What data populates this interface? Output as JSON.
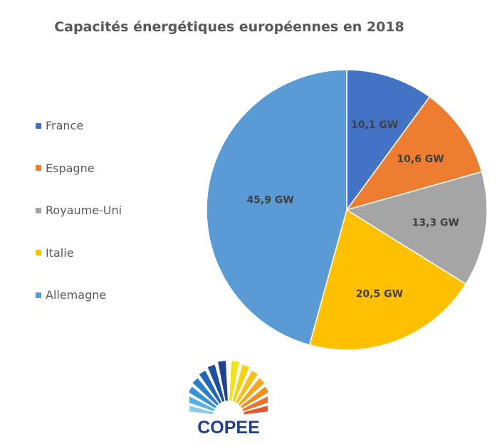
{
  "chart_data": {
    "type": "pie",
    "title": "Capacités énergétiques européennes en 2018",
    "legend_position": "left",
    "categories": [
      "France",
      "Espagne",
      "Royaume-Uni",
      "Italie",
      "Allemagne"
    ],
    "values": [
      10.1,
      10.6,
      13.3,
      20.5,
      45.9
    ],
    "data_labels": [
      "10,1 GW",
      "10,6 GW",
      "13,3 GW",
      "20,5 GW",
      "45,9 GW"
    ],
    "colors": [
      "#4472C4",
      "#ED7D31",
      "#A5A5A5",
      "#FFC000",
      "#5B9BD5"
    ]
  },
  "logo": {
    "text": "COPEE"
  }
}
